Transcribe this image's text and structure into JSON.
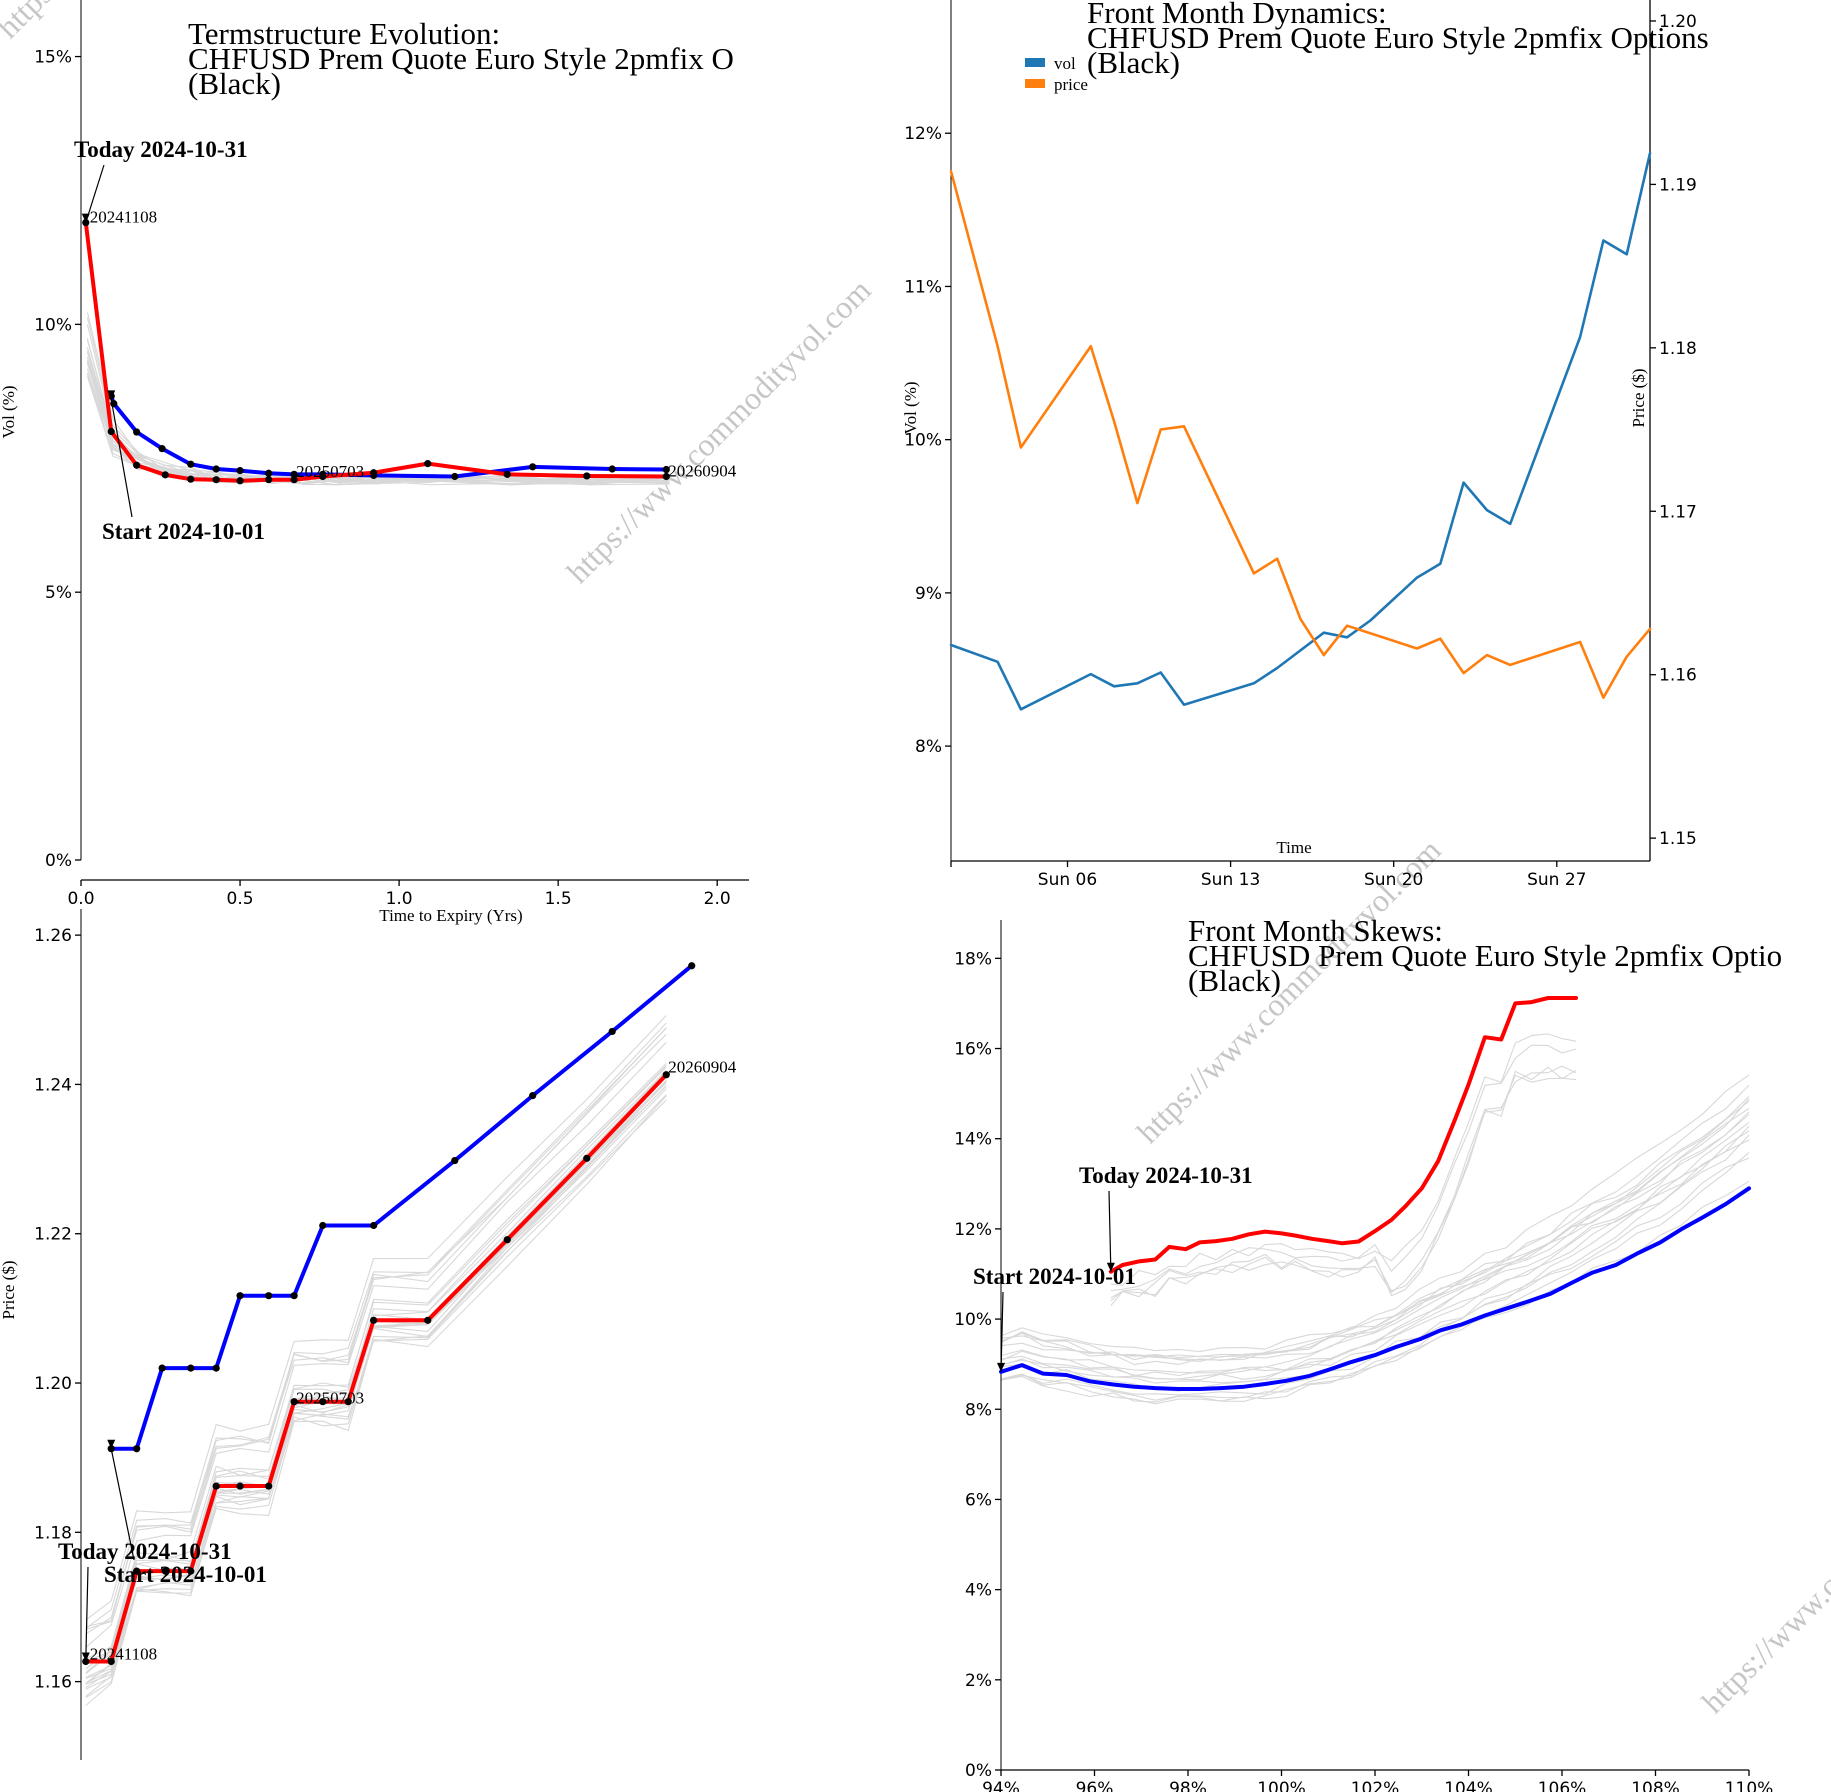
{
  "watermark": "https://www.commodityvol.com",
  "colors": {
    "today": "#ff0000",
    "start": "#0000ff",
    "vol": "#1f77b4",
    "price": "#ff7f0e",
    "history": "#d8d8d8"
  },
  "chart_data": [
    {
      "id": "term_vol",
      "type": "line",
      "title": [
        "Termstructure Evolution:",
        "CHFUSD Prem Quote Euro Style 2pmfix O",
        "(Black)"
      ],
      "xlabel": "Time to Expiry (Yrs)",
      "ylabel": "Vol (%)",
      "xlim": [
        0,
        2.1
      ],
      "ylim": [
        0,
        0.16
      ],
      "xticks": [
        0,
        0.5,
        1.0,
        1.5,
        2.0
      ],
      "xtick_labels": [
        "0.0",
        "0.5",
        "1.0",
        "1.5",
        "2.0"
      ],
      "yticks": [
        0,
        0.05,
        0.1,
        0.15
      ],
      "ytick_labels": [
        "0%",
        "5%",
        "10%",
        "15%"
      ],
      "annotations": [
        {
          "text": "Today 2024-10-31",
          "x": 0.015,
          "y": 0.119
        },
        {
          "text": "Start 2024-10-01",
          "x": 0.095,
          "y": 0.086
        }
      ],
      "point_labels": [
        {
          "text": "20241108",
          "x": 0.015,
          "y": 0.119
        },
        {
          "text": "20250703",
          "x": 0.67,
          "y": 0.0715
        },
        {
          "text": "20260904",
          "x": 1.84,
          "y": 0.0716
        }
      ],
      "series": [
        {
          "name": "Start 2024-10-01",
          "color": "#0000ff",
          "x": [
            0.095,
            0.103,
            0.175,
            0.255,
            0.345,
            0.425,
            0.5,
            0.59,
            0.67,
            0.76,
            0.92,
            1.175,
            1.42,
            1.67,
            1.84
          ],
          "y": [
            0.0866,
            0.0852,
            0.0799,
            0.0768,
            0.0739,
            0.073,
            0.0727,
            0.0722,
            0.072,
            0.072,
            0.0718,
            0.0716,
            0.0734,
            0.073,
            0.0729
          ]
        },
        {
          "name": "Today 2024-10-31",
          "color": "#ff0000",
          "x": [
            0.015,
            0.095,
            0.175,
            0.265,
            0.345,
            0.425,
            0.5,
            0.59,
            0.67,
            0.76,
            0.92,
            1.09,
            1.34,
            1.59,
            1.84
          ],
          "y": [
            0.119,
            0.08,
            0.0737,
            0.0719,
            0.0711,
            0.071,
            0.0708,
            0.071,
            0.071,
            0.0716,
            0.0723,
            0.074,
            0.072,
            0.0717,
            0.0716
          ]
        }
      ]
    },
    {
      "id": "front_month",
      "type": "line",
      "title": [
        "Front Month Dynamics:",
        "CHFUSD Prem Quote Euro Style 2pmfix Options",
        "(Black)"
      ],
      "xlabel": "Time",
      "ylabel": "Vol (%)",
      "ylabel_right": "Price ($)",
      "legend": [
        "vol",
        "price"
      ],
      "legend_position": "top-left",
      "xlim": [
        0,
        30
      ],
      "xticks": [
        5,
        12,
        19,
        26
      ],
      "xtick_labels": [
        "Sun 06",
        "Sun 13",
        "Sun 20",
        "Sun 27"
      ],
      "ylim": [
        0.0725,
        0.1285
      ],
      "yticks": [
        0.08,
        0.09,
        0.1,
        0.11,
        0.12
      ],
      "ytick_labels": [
        "8%",
        "9%",
        "10%",
        "11%",
        "12%"
      ],
      "ylim_right": [
        1.1486,
        1.2011
      ],
      "yticks_right": [
        1.15,
        1.16,
        1.17,
        1.18,
        1.19,
        1.2
      ],
      "ytick_labels_right": [
        "1.15",
        "1.16",
        "1.17",
        "1.18",
        "1.19",
        "1.20"
      ],
      "series": [
        {
          "name": "vol",
          "color": "#1f77b4",
          "x": [
            0,
            2,
            3,
            6,
            7,
            8,
            9,
            10,
            13,
            14,
            16,
            17,
            18,
            19,
            20,
            21,
            22,
            23,
            24,
            27,
            28,
            29,
            30
          ],
          "y": [
            0.0866,
            0.0855,
            0.0824,
            0.0847,
            0.0839,
            0.0841,
            0.0848,
            0.0827,
            0.0841,
            0.0851,
            0.0874,
            0.0871,
            0.0882,
            0.0896,
            0.091,
            0.0919,
            0.0972,
            0.0954,
            0.0945,
            0.1067,
            0.113,
            0.1121,
            0.1187
          ]
        },
        {
          "name": "price",
          "color": "#ff7f0e",
          "x": [
            0,
            2,
            3,
            6,
            7,
            8,
            9,
            10,
            13,
            14,
            15,
            16,
            17,
            20,
            21,
            22,
            23,
            24,
            27,
            28,
            29,
            30
          ],
          "y": [
            1.1908,
            1.1801,
            1.1739,
            1.1801,
            1.1755,
            1.1705,
            1.175,
            1.1752,
            1.1662,
            1.1671,
            1.1634,
            1.1612,
            1.163,
            1.1616,
            1.1622,
            1.1601,
            1.1612,
            1.1606,
            1.162,
            1.1586,
            1.1611,
            1.1628
          ]
        }
      ]
    },
    {
      "id": "term_price",
      "type": "line",
      "title": [],
      "xlabel": "",
      "ylabel": "Price ($)",
      "xlim": [
        0,
        2.1
      ],
      "ylim": [
        1.1495,
        1.2635
      ],
      "yticks": [
        1.16,
        1.18,
        1.2,
        1.22,
        1.24,
        1.26
      ],
      "ytick_labels": [
        "1.16",
        "1.18",
        "1.20",
        "1.22",
        "1.24",
        "1.26"
      ],
      "annotations": [
        {
          "text": "Today 2024-10-31",
          "x": 0.015,
          "y": 1.1627
        },
        {
          "text": "Start 2024-10-01",
          "x": 0.095,
          "y": 1.1912
        }
      ],
      "point_labels": [
        {
          "text": "20241108",
          "x": 0.015,
          "y": 1.1627
        },
        {
          "text": "20250703",
          "x": 0.67,
          "y": 1.1975
        },
        {
          "text": "20260904",
          "x": 1.84,
          "y": 1.2413
        }
      ],
      "series": [
        {
          "name": "Start 2024-10-01",
          "color": "#0000ff",
          "x": [
            0.095,
            0.175,
            0.255,
            0.345,
            0.425,
            0.5,
            0.59,
            0.67,
            0.76,
            0.92,
            1.175,
            1.42,
            1.67,
            1.92
          ],
          "y": [
            1.1912,
            1.1912,
            1.202,
            1.202,
            1.202,
            1.2117,
            1.2117,
            1.2117,
            1.2211,
            1.2211,
            1.2298,
            1.2385,
            1.2471,
            1.2559
          ]
        },
        {
          "name": "Today 2024-10-31",
          "color": "#ff0000",
          "x": [
            0.015,
            0.095,
            0.175,
            0.265,
            0.345,
            0.425,
            0.5,
            0.59,
            0.67,
            0.76,
            0.84,
            0.92,
            1.09,
            1.34,
            1.59,
            1.84
          ],
          "y": [
            1.1627,
            1.1627,
            1.1748,
            1.1748,
            1.1748,
            1.1862,
            1.1862,
            1.1862,
            1.1975,
            1.1975,
            1.1975,
            1.2084,
            1.2084,
            1.2192,
            1.2301,
            1.2413
          ]
        }
      ]
    },
    {
      "id": "skews",
      "type": "line",
      "title": [
        "Front Month Skews:",
        "CHFUSD Prem Quote Euro Style 2pmfix Optio",
        "(Black)"
      ],
      "xlabel": "",
      "ylabel": "",
      "xlim": [
        94,
        110
      ],
      "xticks": [
        94,
        96,
        98,
        100,
        102,
        104,
        106,
        108,
        110
      ],
      "xtick_labels": [
        "94%",
        "96%",
        "98%",
        "100%",
        "102%",
        "104%",
        "106%",
        "108%",
        "110%"
      ],
      "ylim": [
        0,
        0.1885
      ],
      "yticks": [
        0,
        0.02,
        0.04,
        0.06,
        0.08,
        0.1,
        0.12,
        0.14,
        0.16,
        0.18
      ],
      "ytick_labels": [
        "0%",
        "2%",
        "4%",
        "6%",
        "8%",
        "10%",
        "12%",
        "14%",
        "16%",
        "18%"
      ],
      "annotations": [
        {
          "text": "Today 2024-10-31",
          "x": 96.35,
          "y": 0.1105
        },
        {
          "text": "Start 2024-10-01",
          "x": 94.0,
          "y": 0.0883
        }
      ],
      "series": [
        {
          "name": "Start 2024-10-01",
          "color": "#0000ff",
          "x": [
            94.0,
            94.45,
            94.9,
            95.4,
            95.9,
            96.4,
            96.85,
            97.3,
            97.8,
            98.25,
            98.7,
            99.2,
            99.65,
            100.1,
            100.6,
            101.05,
            101.5,
            102.0,
            102.45,
            102.95,
            103.4,
            103.85,
            104.35,
            104.8,
            105.25,
            105.75,
            106.2,
            106.65,
            107.15,
            107.6,
            108.1,
            108.55,
            109.0,
            109.5,
            110.0
          ],
          "y": [
            0.0883,
            0.0898,
            0.0879,
            0.0876,
            0.0862,
            0.0855,
            0.085,
            0.0847,
            0.0845,
            0.0845,
            0.0847,
            0.085,
            0.0856,
            0.0863,
            0.0874,
            0.0889,
            0.0905,
            0.092,
            0.0938,
            0.0955,
            0.0975,
            0.0988,
            0.1008,
            0.1023,
            0.1038,
            0.1056,
            0.108,
            0.1103,
            0.112,
            0.1145,
            0.117,
            0.1199,
            0.1225,
            0.1255,
            0.129
          ]
        },
        {
          "name": "Today 2024-10-31",
          "color": "#ff0000",
          "x": [
            96.35,
            96.6,
            96.95,
            97.3,
            97.6,
            97.95,
            98.25,
            98.6,
            98.95,
            99.3,
            99.65,
            100.0,
            100.3,
            100.65,
            101.0,
            101.3,
            101.65,
            102.0,
            102.35,
            102.65,
            103.0,
            103.35,
            103.7,
            104.0,
            104.35,
            104.7,
            105.0,
            105.35,
            105.7,
            106.0,
            106.3
          ],
          "y": [
            0.1105,
            0.112,
            0.1128,
            0.1132,
            0.116,
            0.1155,
            0.117,
            0.1173,
            0.1178,
            0.1188,
            0.1194,
            0.119,
            0.1185,
            0.1178,
            0.1173,
            0.1168,
            0.1172,
            0.1195,
            0.122,
            0.125,
            0.129,
            0.135,
            0.144,
            0.152,
            0.1625,
            0.162,
            0.17,
            0.1703,
            0.1712,
            0.1712,
            0.1712
          ]
        }
      ]
    }
  ]
}
